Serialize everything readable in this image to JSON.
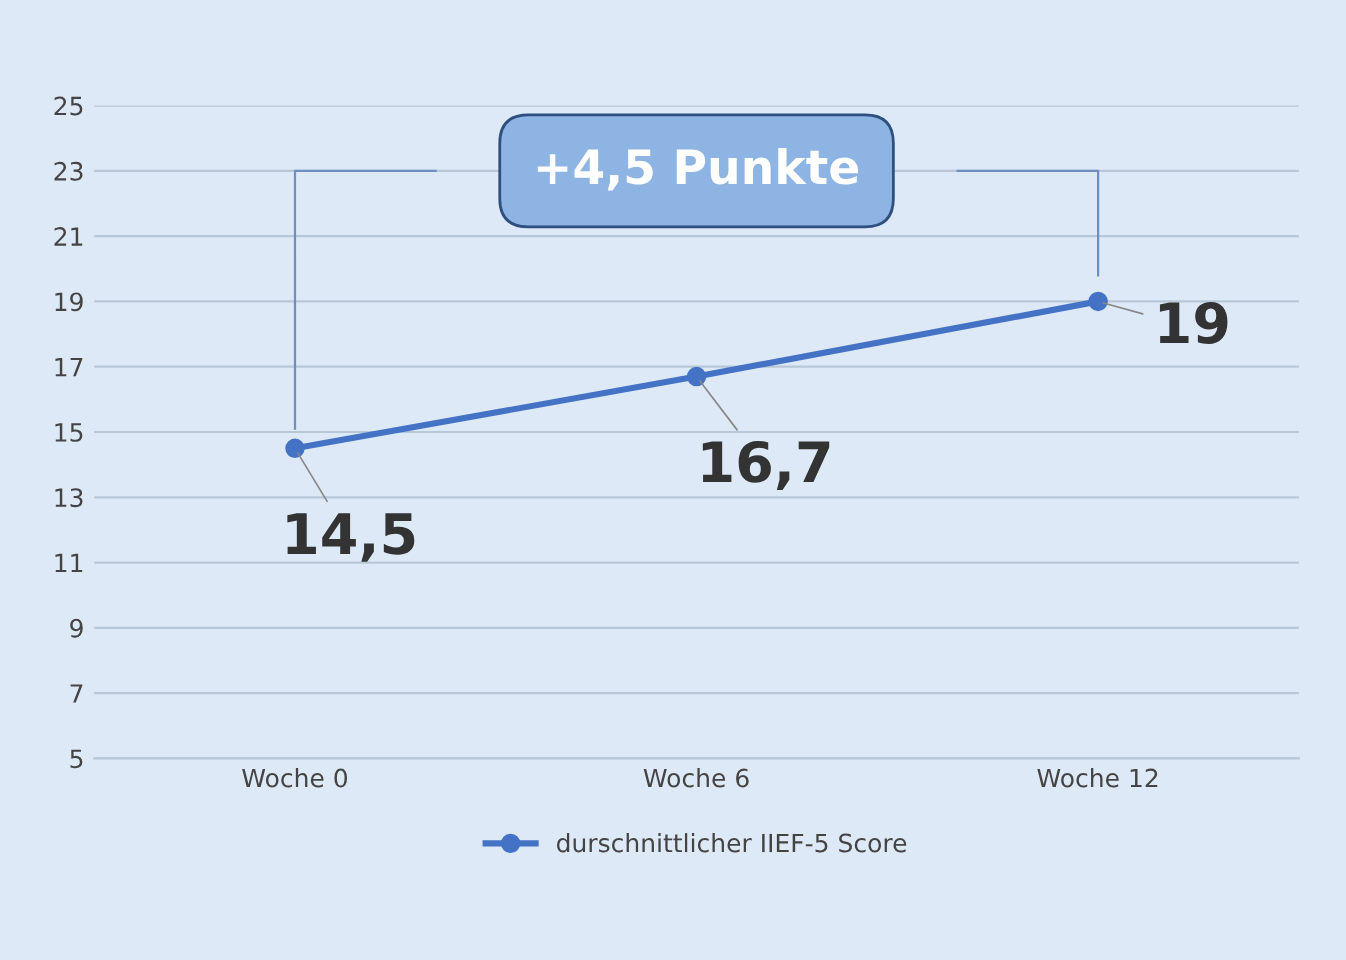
{
  "chart_data": {
    "type": "line",
    "categories": [
      "Woche 0",
      "Woche 6",
      "Woche 12"
    ],
    "series": [
      {
        "name": "durschnittlicher IIEF-5 Score",
        "color": "#4472c4",
        "values": [
          14.5,
          16.7,
          19
        ],
        "value_labels": [
          "14,5",
          "16,7",
          "19"
        ]
      }
    ],
    "annotations": [
      "+4,5 Punkte"
    ],
    "ylim": [
      5,
      25
    ],
    "yticks": [
      5,
      7,
      9,
      11,
      13,
      15,
      17,
      19,
      21,
      23,
      25
    ],
    "grid": "y",
    "legend": "bottom",
    "marker": "circle",
    "line_style": "solid"
  }
}
